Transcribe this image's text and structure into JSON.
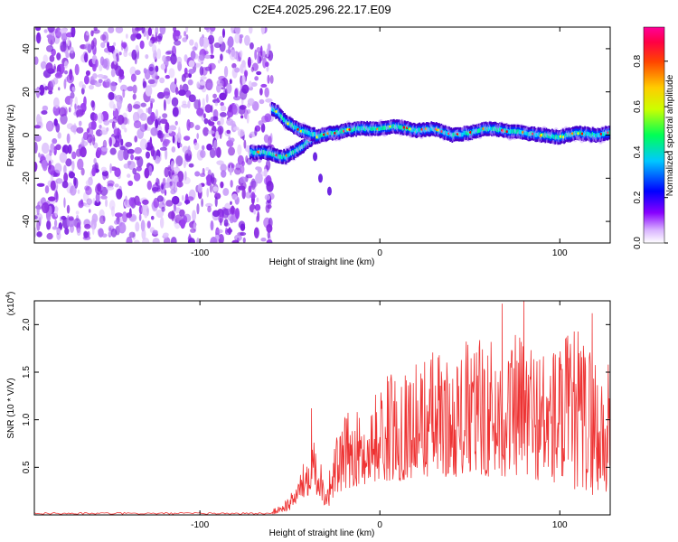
{
  "figure_title": "C2E4.2025.296.22.17.E09",
  "chart_data": [
    {
      "type": "heatmap",
      "title": "",
      "xlabel": "Height of straight line (km)",
      "ylabel": "Frequency (Hz)",
      "xlim": [
        -192,
        128
      ],
      "ylim": [
        -50,
        50
      ],
      "x_ticks": [
        -100,
        0,
        100
      ],
      "y_ticks": [
        -40,
        -20,
        0,
        20,
        40
      ],
      "colorbar": {
        "label": "Normalized spectral amplitude",
        "range": [
          0,
          0.95
        ],
        "ticks": [
          "0.0",
          "0.2",
          "0.4",
          "0.6",
          "0.8"
        ],
        "colormap": [
          "#ffffff",
          "#8800ff",
          "#0000ff",
          "#00ffff",
          "#00ff00",
          "#ffff00",
          "#ff8800",
          "#ff0000",
          "#ff00aa"
        ]
      },
      "noise_region_x": [
        -192,
        -60
      ],
      "ridge": {
        "name": "",
        "x": [
          -72,
          -68,
          -64,
          -60,
          -56,
          -52,
          -48,
          -44,
          -40,
          -36,
          -32,
          -28,
          -24,
          -20,
          -10,
          0,
          10,
          20,
          30,
          40,
          50,
          60,
          70,
          80,
          90,
          100,
          110,
          120,
          128
        ],
        "y": [
          -8,
          -8,
          -8,
          -9,
          -10,
          -10,
          -8,
          -6,
          -3,
          -1,
          0,
          1,
          1,
          2,
          3,
          3,
          4,
          2,
          3,
          0,
          1,
          3,
          2,
          1,
          0,
          -1,
          1,
          0,
          1
        ]
      },
      "upper_branch": {
        "x": [
          -60,
          -56,
          -52,
          -48,
          -44,
          -40,
          -36
        ],
        "y": [
          12,
          10,
          6,
          4,
          2,
          1,
          0
        ]
      },
      "side_features": [
        {
          "x": -36,
          "y": -10
        },
        {
          "x": -33,
          "y": -20
        },
        {
          "x": -28,
          "y": -26
        }
      ]
    },
    {
      "type": "line",
      "title": "",
      "xlabel": "Height of straight line (km)",
      "ylabel": "SNR (10 * V/V)",
      "y_multiplier": "(x10",
      "y_multiplier_exp": "4",
      "y_multiplier_close": ")",
      "xlim": [
        -192,
        128
      ],
      "ylim": [
        0,
        2.25
      ],
      "x_ticks": [
        -100,
        0,
        100
      ],
      "y_ticks": [
        0.5,
        1.0,
        1.5,
        2.0
      ],
      "y_tick_labels": [
        "0.5",
        "1.0",
        "1.5",
        "2.0"
      ],
      "series": [
        {
          "name": "",
          "color": "#ee3333",
          "envelope": {
            "x": [
              -192,
              -70,
              -60,
              -50,
              -45,
              -40,
              -38,
              -35,
              -32,
              -30,
              -28,
              -25,
              -20,
              -15,
              -10,
              -5,
              0,
              10,
              20,
              30,
              40,
              50,
              60,
              70,
              80,
              90,
              100,
              110,
              120,
              128
            ],
            "lower": [
              0.0,
              0.0,
              0.0,
              0.05,
              0.15,
              0.2,
              0.3,
              0.2,
              0.15,
              0.05,
              0.1,
              0.2,
              0.25,
              0.3,
              0.3,
              0.35,
              0.35,
              0.35,
              0.4,
              0.4,
              0.4,
              0.4,
              0.4,
              0.4,
              0.4,
              0.35,
              0.3,
              0.25,
              0.2,
              0.2
            ],
            "upper": [
              0.03,
              0.03,
              0.05,
              0.2,
              0.4,
              0.7,
              1.1,
              0.8,
              0.5,
              0.4,
              0.5,
              0.8,
              1.0,
              1.2,
              1.0,
              1.2,
              1.4,
              1.6,
              1.6,
              1.8,
              1.6,
              1.9,
              1.9,
              1.8,
              2.0,
              1.8,
              1.9,
              2.0,
              1.8,
              1.6
            ]
          },
          "peaks": [
            {
              "x": -38,
              "y": 1.12
            },
            {
              "x": 68,
              "y": 2.22
            },
            {
              "x": 80,
              "y": 2.25
            },
            {
              "x": 118,
              "y": 2.12
            }
          ]
        }
      ]
    }
  ]
}
